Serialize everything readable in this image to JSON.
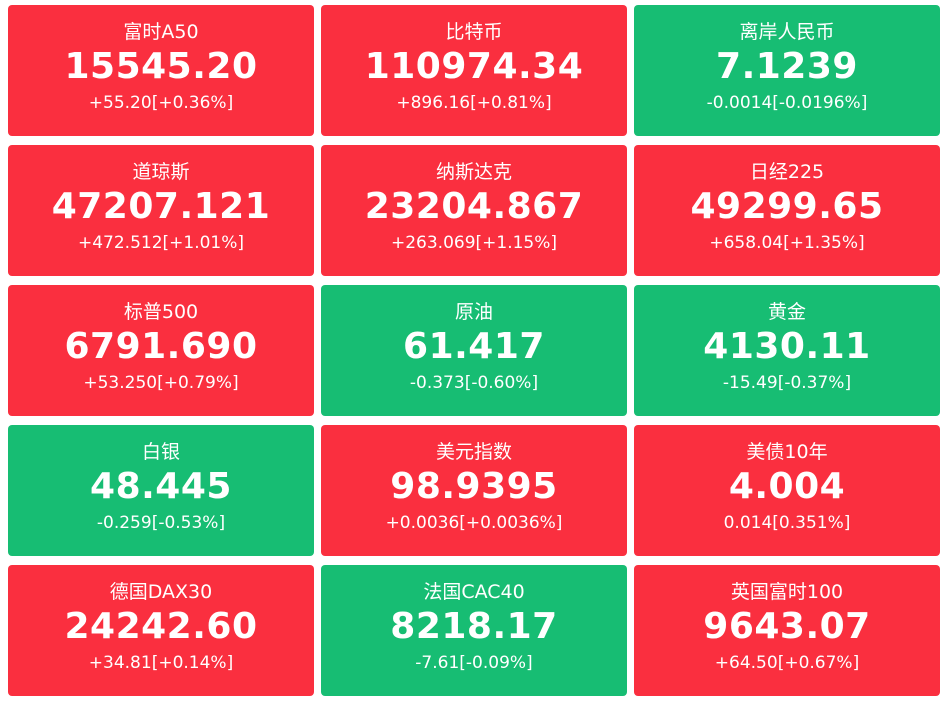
{
  "colors": {
    "up": "#fa2f3f",
    "down": "#17bd73",
    "text": "#ffffff"
  },
  "tiles": [
    {
      "name": "富时A50",
      "price": "15545.20",
      "change": "+55.20[+0.36%]",
      "trend": "up"
    },
    {
      "name": "比特币",
      "price": "110974.34",
      "change": "+896.16[+0.81%]",
      "trend": "up"
    },
    {
      "name": "离岸人民币",
      "price": "7.1239",
      "change": "-0.0014[-0.0196%]",
      "trend": "down"
    },
    {
      "name": "道琼斯",
      "price": "47207.121",
      "change": "+472.512[+1.01%]",
      "trend": "up"
    },
    {
      "name": "纳斯达克",
      "price": "23204.867",
      "change": "+263.069[+1.15%]",
      "trend": "up"
    },
    {
      "name": "日经225",
      "price": "49299.65",
      "change": "+658.04[+1.35%]",
      "trend": "up"
    },
    {
      "name": "标普500",
      "price": "6791.690",
      "change": "+53.250[+0.79%]",
      "trend": "up"
    },
    {
      "name": "原油",
      "price": "61.417",
      "change": "-0.373[-0.60%]",
      "trend": "down"
    },
    {
      "name": "黄金",
      "price": "4130.11",
      "change": "-15.49[-0.37%]",
      "trend": "down"
    },
    {
      "name": "白银",
      "price": "48.445",
      "change": "-0.259[-0.53%]",
      "trend": "down"
    },
    {
      "name": "美元指数",
      "price": "98.9395",
      "change": "+0.0036[+0.0036%]",
      "trend": "up"
    },
    {
      "name": "美债10年",
      "price": "4.004",
      "change": "0.014[0.351%]",
      "trend": "up"
    },
    {
      "name": "德国DAX30",
      "price": "24242.60",
      "change": "+34.81[+0.14%]",
      "trend": "up"
    },
    {
      "name": "法国CAC40",
      "price": "8218.17",
      "change": "-7.61[-0.09%]",
      "trend": "down"
    },
    {
      "name": "英国富时100",
      "price": "9643.07",
      "change": "+64.50[+0.67%]",
      "trend": "up"
    }
  ]
}
